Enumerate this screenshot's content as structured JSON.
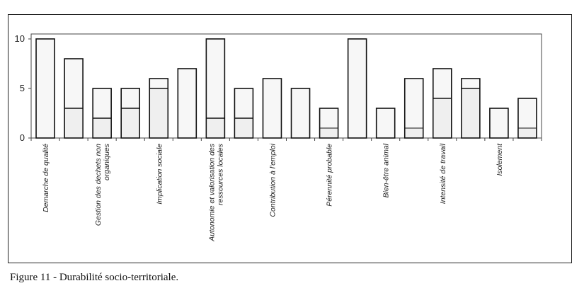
{
  "caption": "Figure 11 - Durabilité socio-territoriale.",
  "chart_data": {
    "type": "bar",
    "title": "",
    "xlabel": "",
    "ylabel": "",
    "ylim": [
      0,
      10.5
    ],
    "yticks": [
      0,
      5,
      10
    ],
    "grid": false,
    "legend": "none",
    "colors": {
      "bar_outline": "#111111",
      "bar_fill": "#f7f7f7",
      "lower_fill": "#efefef",
      "axis": "#444444"
    },
    "bars": [
      {
        "value": 10,
        "lower": null,
        "label": "Demarche de qualité"
      },
      {
        "value": 8,
        "lower": 3,
        "label": ""
      },
      {
        "value": 5,
        "lower": 2,
        "label": "Gestion des dechets non organiques"
      },
      {
        "value": 5,
        "lower": 3,
        "label": ""
      },
      {
        "value": 6,
        "lower": 5,
        "label": "Implication sociale"
      },
      {
        "value": 7,
        "lower": null,
        "label": ""
      },
      {
        "value": 10,
        "lower": 2,
        "label": "Autonomie et valorisation des ressources locales"
      },
      {
        "value": 5,
        "lower": 2,
        "label": ""
      },
      {
        "value": 6,
        "lower": null,
        "label": "Contribution à l'emploi"
      },
      {
        "value": 5,
        "lower": null,
        "label": ""
      },
      {
        "value": 3,
        "lower": 1,
        "label": "Pérennité probable"
      },
      {
        "value": 10,
        "lower": null,
        "label": ""
      },
      {
        "value": 3,
        "lower": null,
        "label": "Bien-être animal"
      },
      {
        "value": 6,
        "lower": 1,
        "label": ""
      },
      {
        "value": 7,
        "lower": 4,
        "label": "Intensité de travail"
      },
      {
        "value": 6,
        "lower": 5,
        "label": ""
      },
      {
        "value": 3,
        "lower": null,
        "label": "Isolement"
      },
      {
        "value": 4,
        "lower": 1,
        "label": ""
      }
    ]
  }
}
